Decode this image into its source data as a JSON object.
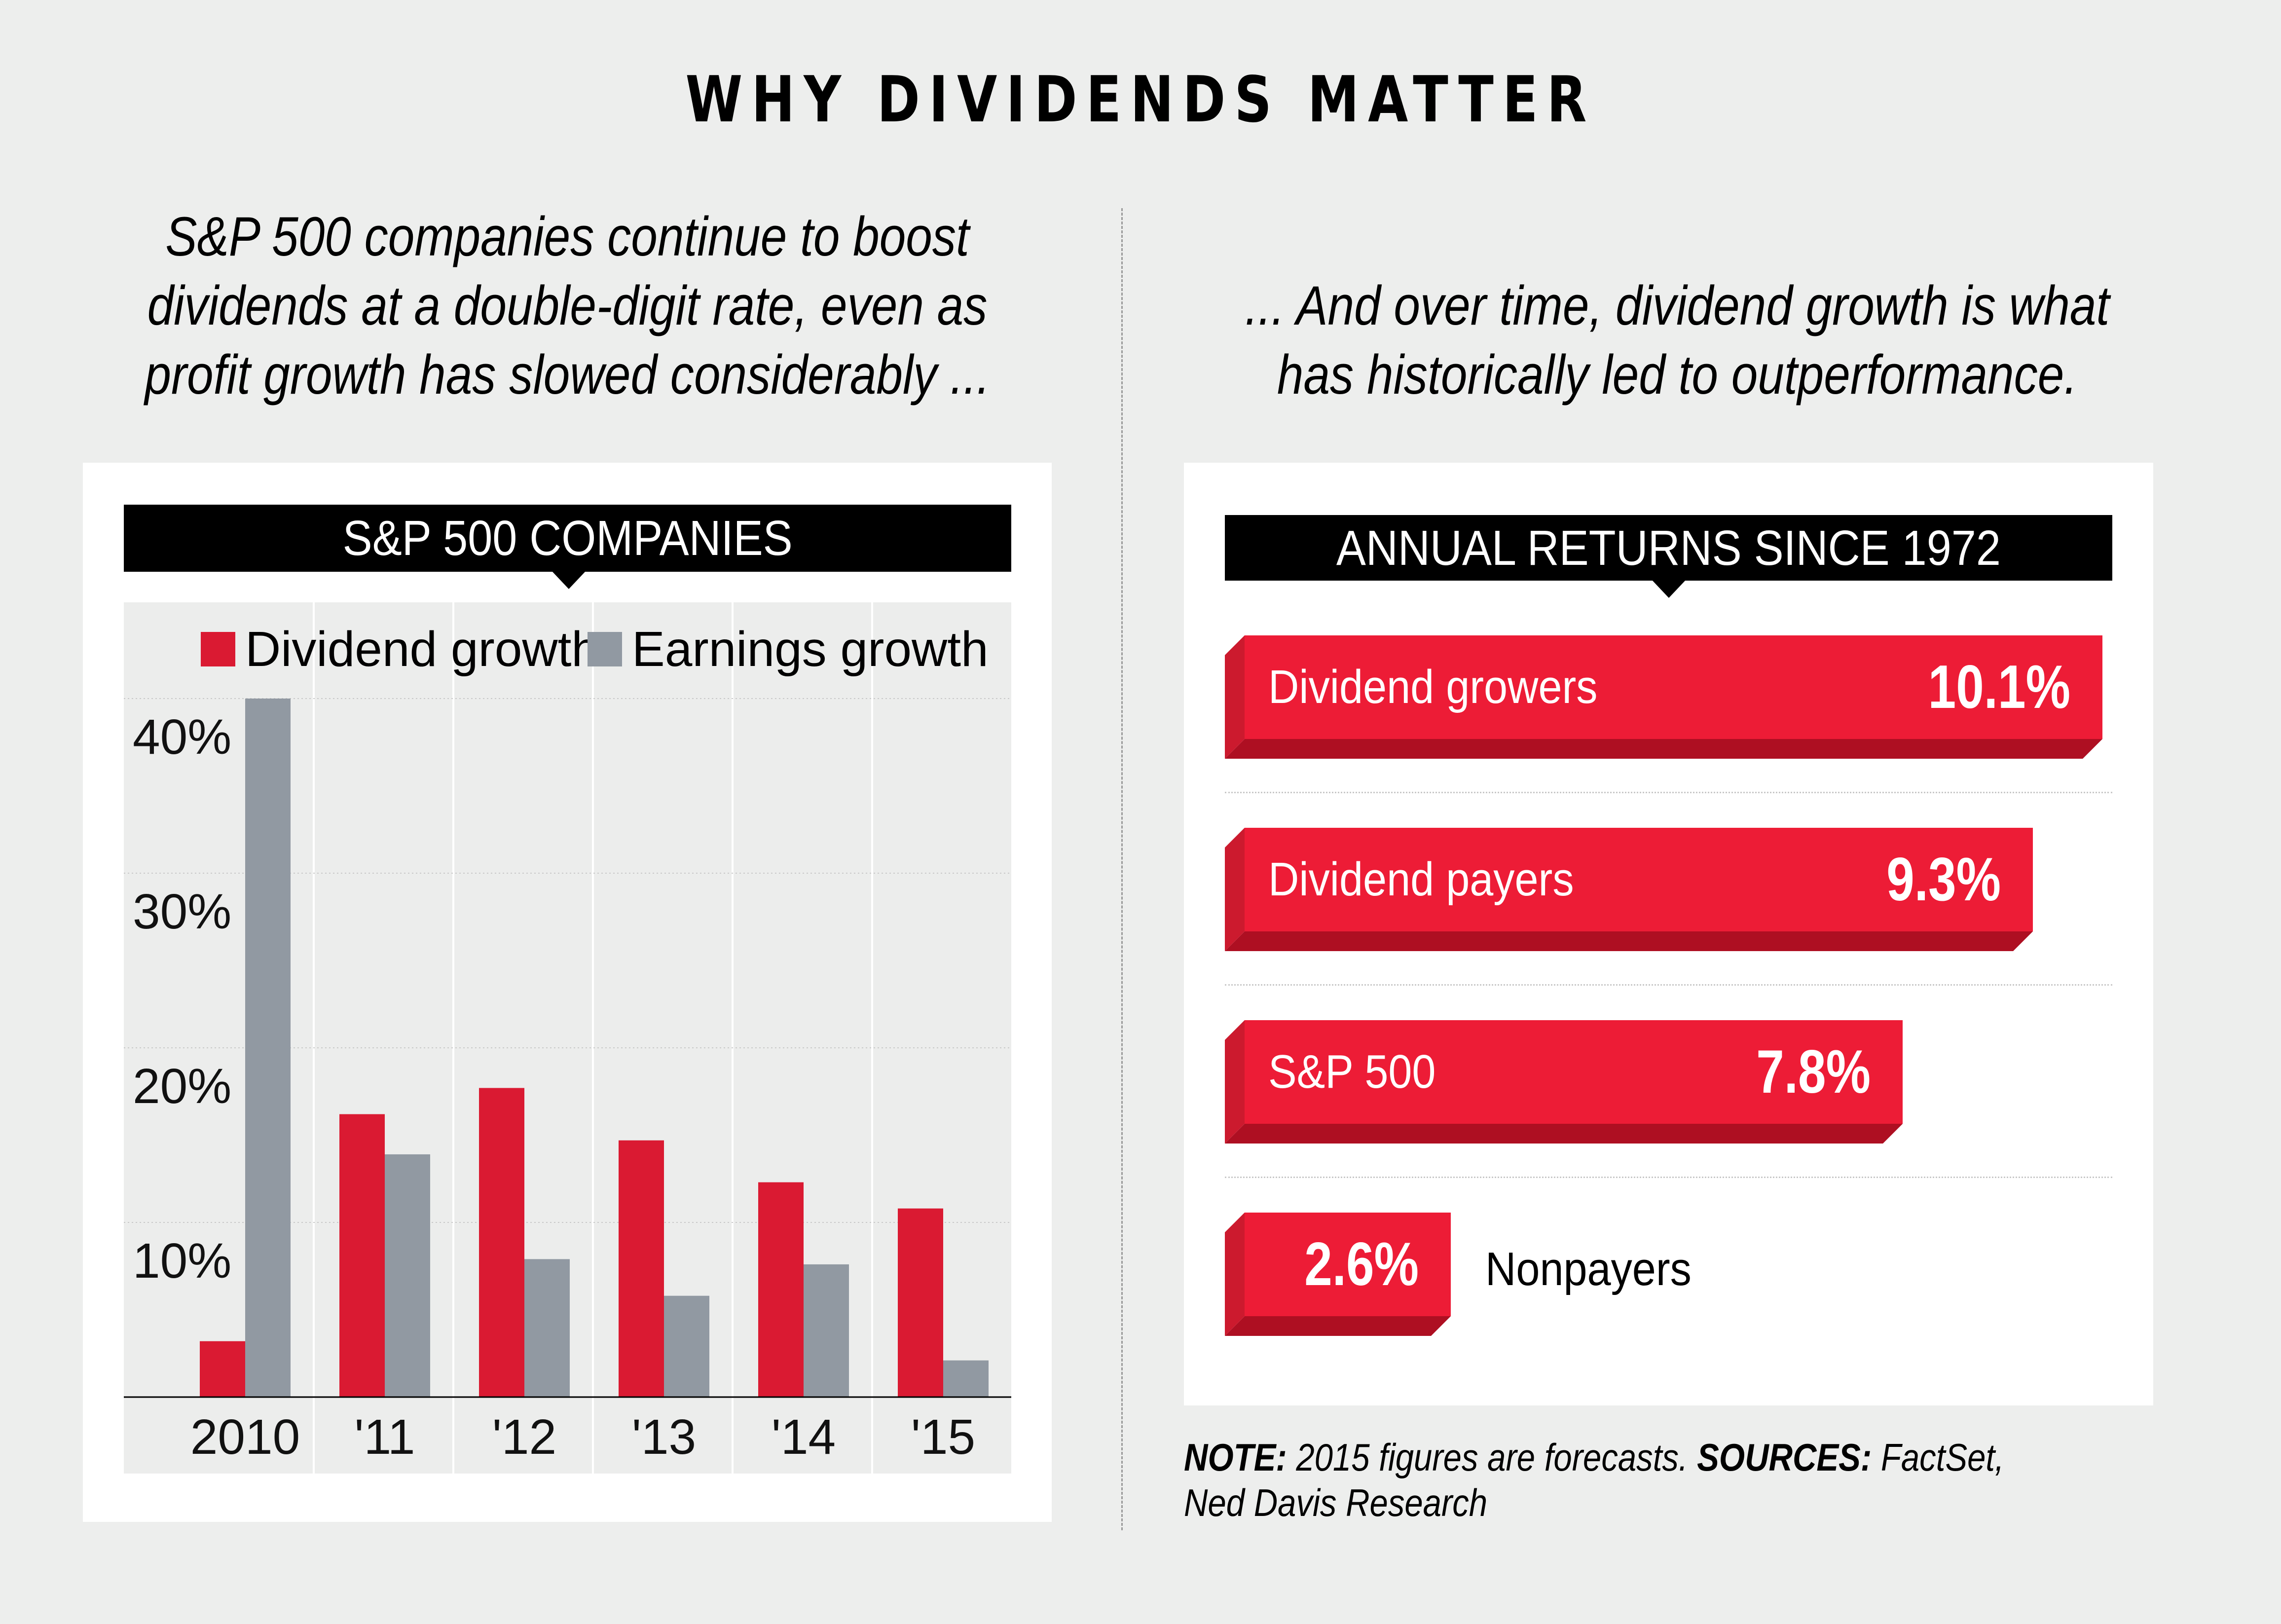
{
  "title": "WHY DIVIDENDS MATTER",
  "left_subtitle": [
    "S&P 500 companies continue to boost",
    "dividends at a double-digit rate, even as",
    "profit growth has slowed considerably ..."
  ],
  "right_subtitle": [
    "... And over time, dividend growth is what",
    "has historically led to outperformance."
  ],
  "colors": {
    "background": "#EDEEED",
    "card": "#FFFFFF",
    "dividend_bar": "#DA1A32",
    "earnings_bar": "#9199A2",
    "return_bar_face": "#ED1C36",
    "return_bar_side": "#CC1A2E",
    "return_bar_bottom": "#AE0F22",
    "header_bg": "#000000"
  },
  "chart_data": [
    {
      "type": "bar",
      "title": "S&P 500 COMPANIES",
      "categories": [
        "2010",
        "'11",
        "'12",
        "'13",
        "'14",
        "'15"
      ],
      "series": [
        {
          "name": "Dividend growth",
          "values": [
            3.2,
            16.2,
            17.7,
            14.7,
            12.3,
            10.8
          ]
        },
        {
          "name": "Earnings growth",
          "values": [
            40.0,
            13.9,
            7.9,
            5.8,
            7.6,
            2.1
          ]
        }
      ],
      "yticks": [
        "10%",
        "20%",
        "30%",
        "40%"
      ],
      "ytick_values": [
        10,
        20,
        30,
        40
      ],
      "ylim": [
        0,
        45
      ],
      "xlabel": "",
      "ylabel": "",
      "grid": true,
      "legend": "top"
    },
    {
      "type": "bar",
      "orientation": "horizontal",
      "title": "ANNUAL RETURNS SINCE 1972",
      "categories": [
        "Dividend growers",
        "Dividend payers",
        "S&P 500",
        "Nonpayers"
      ],
      "values": [
        10.1,
        9.3,
        7.8,
        2.6
      ],
      "value_labels": [
        "10.1%",
        "9.3%",
        "7.8%",
        "2.6%"
      ],
      "xlim": [
        0,
        10.1
      ]
    }
  ],
  "footnote": {
    "note_label": "NOTE:",
    "note_text": " 2015 figures are forecasts. ",
    "sources_label": "SOURCES:",
    "sources_text": " FactSet, Ned Davis Research"
  }
}
